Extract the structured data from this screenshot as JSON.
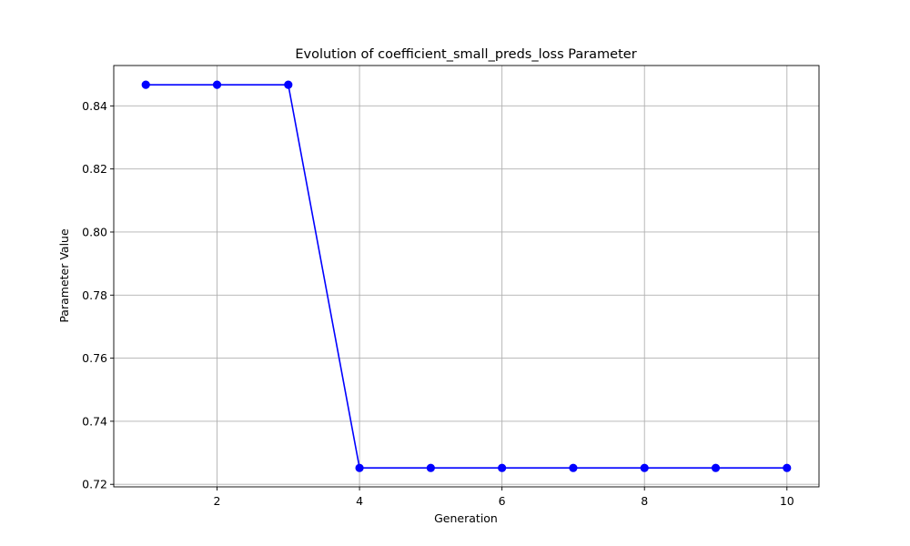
{
  "chart_data": {
    "type": "line",
    "title": "Evolution of coefficient_small_preds_loss Parameter",
    "xlabel": "Generation",
    "ylabel": "Parameter Value",
    "x": [
      1,
      2,
      3,
      4,
      5,
      6,
      7,
      8,
      9,
      10
    ],
    "series": [
      {
        "values": [
          0.8467,
          0.8467,
          0.8467,
          0.7252,
          0.7252,
          0.7252,
          0.7252,
          0.7252,
          0.7252,
          0.7252
        ]
      }
    ],
    "xlim": [
      0.55,
      10.45
    ],
    "ylim": [
      0.7192,
      0.8528
    ],
    "xticks": [
      2,
      4,
      6,
      8,
      10
    ],
    "yticks": [
      0.72,
      0.74,
      0.76,
      0.78,
      0.8,
      0.82,
      0.84
    ],
    "ytick_labels": [
      "0.72",
      "0.74",
      "0.76",
      "0.78",
      "0.80",
      "0.82",
      "0.84"
    ],
    "grid": true,
    "line_color": "#0000ff",
    "marker": "circle"
  }
}
